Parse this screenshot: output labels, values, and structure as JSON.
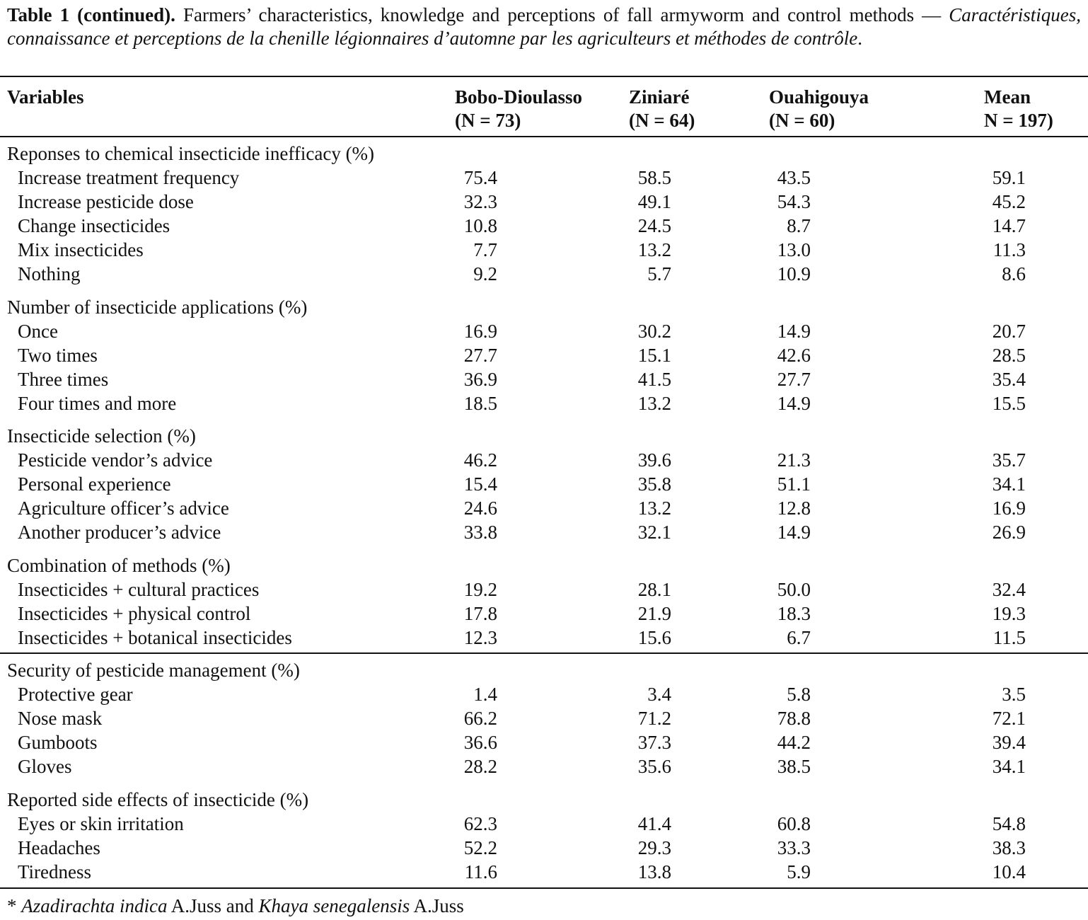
{
  "caption": {
    "label": "Table 1 (continued).",
    "english": " Farmers’ characteristics, knowledge and perceptions of fall armyworm and control methods — ",
    "french": "Caractéristiques, connaissance et perceptions de la chenille légionnaires d’automne par les agriculteurs et méthodes de contrôle",
    "end": "."
  },
  "columns": [
    {
      "name": "Variables",
      "n": ""
    },
    {
      "name": "Bobo-Dioulasso",
      "n": "(N = 73)"
    },
    {
      "name": "Ziniaré",
      "n": "(N = 64)"
    },
    {
      "name": "Ouahigouya",
      "n": "(N = 60)"
    },
    {
      "name": "Mean",
      "n": "N = 197)"
    }
  ],
  "sections": [
    {
      "title": "Reponses to chemical insecticide inefficacy (%)",
      "rows": [
        {
          "label": "Increase treatment frequency",
          "values": [
            "75.4",
            "58.5",
            "43.5",
            "59.1"
          ]
        },
        {
          "label": "Increase pesticide dose",
          "values": [
            "32.3",
            "49.1",
            "54.3",
            "45.2"
          ]
        },
        {
          "label": "Change insecticides",
          "values": [
            "10.8",
            "24.5",
            "8.7",
            "14.7"
          ]
        },
        {
          "label": "Mix insecticides",
          "values": [
            "7.7",
            "13.2",
            "13.0",
            "11.3"
          ]
        },
        {
          "label": "Nothing",
          "values": [
            "9.2",
            "5.7",
            "10.9",
            "8.6"
          ]
        }
      ]
    },
    {
      "title": "Number of insecticide applications (%)",
      "rows": [
        {
          "label": "Once",
          "values": [
            "16.9",
            "30.2",
            "14.9",
            "20.7"
          ]
        },
        {
          "label": "Two times",
          "values": [
            "27.7",
            "15.1",
            "42.6",
            "28.5"
          ]
        },
        {
          "label": "Three times",
          "values": [
            "36.9",
            "41.5",
            "27.7",
            "35.4"
          ]
        },
        {
          "label": "Four times and more",
          "values": [
            "18.5",
            "13.2",
            "14.9",
            "15.5"
          ]
        }
      ]
    },
    {
      "title": "Insecticide selection (%)",
      "rows": [
        {
          "label": "Pesticide vendor’s advice",
          "values": [
            "46.2",
            "39.6",
            "21.3",
            "35.7"
          ]
        },
        {
          "label": "Personal experience",
          "values": [
            "15.4",
            "35.8",
            "51.1",
            "34.1"
          ]
        },
        {
          "label": "Agriculture officer’s advice",
          "values": [
            "24.6",
            "13.2",
            "12.8",
            "16.9"
          ]
        },
        {
          "label": "Another producer’s advice",
          "values": [
            "33.8",
            "32.1",
            "14.9",
            "26.9"
          ]
        }
      ]
    },
    {
      "title": "Combination of methods (%)",
      "rows": [
        {
          "label": "Insecticides + cultural practices",
          "values": [
            "19.2",
            "28.1",
            "50.0",
            "32.4"
          ]
        },
        {
          "label": "Insecticides + physical control",
          "values": [
            "17.8",
            "21.9",
            "18.3",
            "19.3"
          ]
        },
        {
          "label": "Insecticides + botanical insecticides",
          "values": [
            "12.3",
            "15.6",
            "6.7",
            "11.5"
          ]
        }
      ]
    },
    {
      "title": "Security of pesticide management (%)",
      "rows": [
        {
          "label": "Protective gear",
          "values": [
            "1.4",
            "3.4",
            "5.8",
            "3.5"
          ]
        },
        {
          "label": "Nose mask",
          "values": [
            "66.2",
            "71.2",
            "78.8",
            "72.1"
          ]
        },
        {
          "label": "Gumboots",
          "values": [
            "36.6",
            "37.3",
            "44.2",
            "39.4"
          ]
        },
        {
          "label": "Gloves",
          "values": [
            "28.2",
            "35.6",
            "38.5",
            "34.1"
          ]
        }
      ]
    },
    {
      "title": "Reported side effects of insecticide (%)",
      "rows": [
        {
          "label": "Eyes or skin irritation",
          "values": [
            "62.3",
            "41.4",
            "60.8",
            "54.8"
          ]
        },
        {
          "label": "Headaches",
          "values": [
            "52.2",
            "29.3",
            "33.3",
            "38.3"
          ]
        },
        {
          "label": "Tiredness",
          "values": [
            "11.6",
            "13.8",
            "5.9",
            "10.4"
          ]
        }
      ]
    }
  ],
  "footnote": {
    "star": "* ",
    "species1": "Azadirachta indica",
    "author1": " A.Juss and ",
    "species2": "Khaya senegalensis",
    "author2": " A.Juss"
  }
}
